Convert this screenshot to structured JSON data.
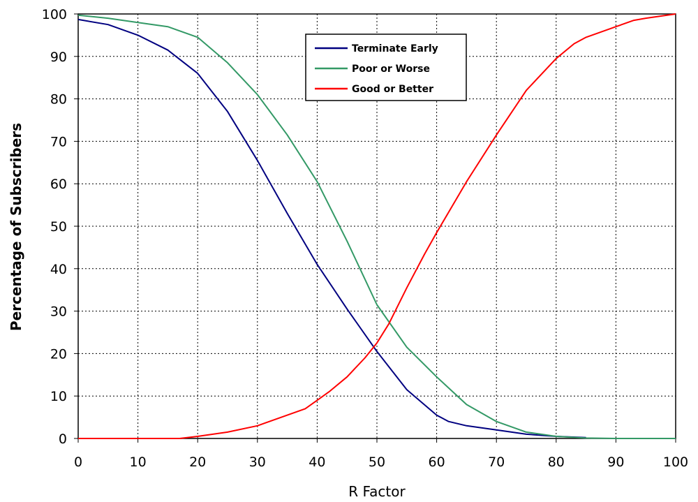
{
  "chart_data": {
    "type": "line",
    "title": "",
    "xlabel": "R Factor",
    "ylabel": "Percentage of Subscribers",
    "xlim": [
      0,
      100
    ],
    "ylim": [
      0,
      100
    ],
    "x_ticks": [
      0,
      10,
      20,
      30,
      40,
      50,
      60,
      70,
      80,
      90,
      100
    ],
    "y_ticks": [
      0,
      10,
      20,
      30,
      40,
      50,
      60,
      70,
      80,
      90,
      100
    ],
    "grid": true,
    "legend_position": "top-center",
    "series": [
      {
        "name": "Terminate Early",
        "color": "#000080",
        "x": [
          0,
          5,
          10,
          15,
          20,
          25,
          30,
          35,
          40,
          45,
          50,
          55,
          60,
          62,
          65,
          70,
          75,
          80,
          85
        ],
        "y": [
          98.7,
          97.5,
          95,
          91.5,
          86,
          77,
          65.5,
          53,
          41,
          30.5,
          20.5,
          11.5,
          5.5,
          4,
          3,
          2,
          1,
          0.5,
          0.2
        ]
      },
      {
        "name": "Poor or Worse",
        "color": "#339966",
        "x": [
          0,
          5,
          10,
          15,
          20,
          25,
          30,
          35,
          40,
          45,
          50,
          55,
          60,
          65,
          70,
          75,
          80,
          85,
          90,
          95,
          100
        ],
        "y": [
          99.7,
          99,
          98,
          97,
          94.5,
          88.5,
          81,
          71.5,
          60.5,
          46.5,
          31.5,
          21.5,
          14.5,
          8,
          4,
          1.5,
          0.5,
          0.1,
          0,
          0,
          0
        ]
      },
      {
        "name": "Good or Better",
        "color": "#ff0000",
        "x": [
          0,
          10,
          17,
          20,
          25,
          30,
          35,
          38,
          40,
          42,
          45,
          48,
          50,
          52,
          55,
          58,
          60,
          65,
          70,
          75,
          80,
          83,
          85,
          90,
          93,
          95,
          100
        ],
        "y": [
          0,
          0,
          0,
          0.5,
          1.5,
          3,
          5.5,
          7,
          9,
          11,
          14.5,
          19,
          22.5,
          27,
          35.5,
          43.5,
          48.5,
          60.5,
          71.5,
          82,
          89.5,
          93,
          94.5,
          97,
          98.5,
          99,
          100
        ]
      }
    ]
  }
}
